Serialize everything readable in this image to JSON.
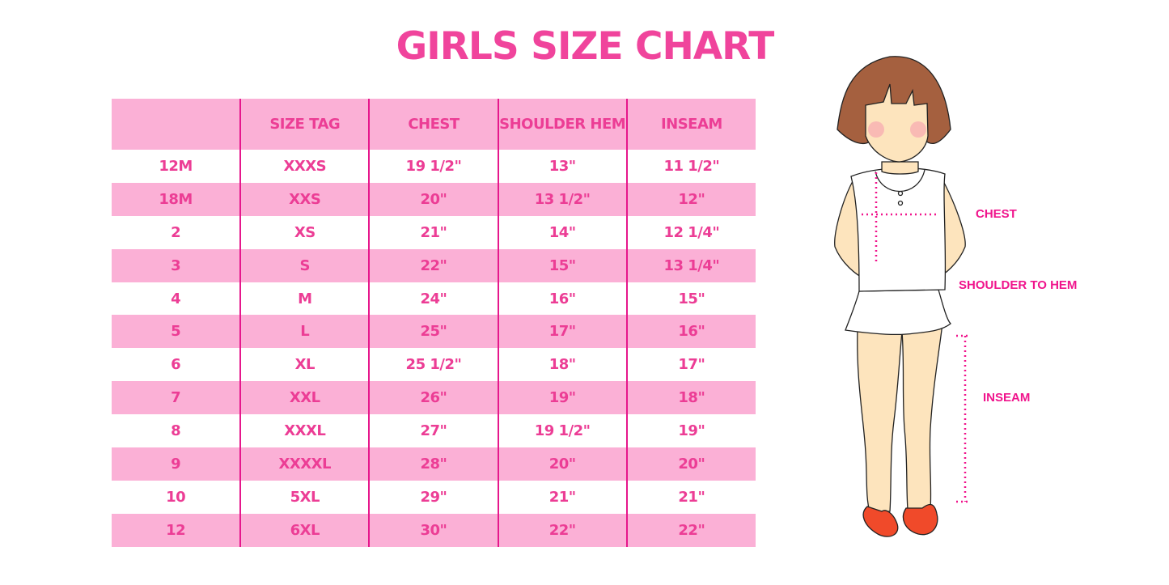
{
  "title": "GIRLS SIZE CHART",
  "table": {
    "headers": [
      "",
      "SIZE TAG",
      "CHEST",
      "SHOULDER HEM",
      "INSEAM"
    ],
    "rows": [
      [
        "12M",
        "XXXS",
        "19 1/2\"",
        "13\"",
        "11 1/2\""
      ],
      [
        "18M",
        "XXS",
        "20\"",
        "13 1/2\"",
        "12\""
      ],
      [
        "2",
        "XS",
        "21\"",
        "14\"",
        "12 1/4\""
      ],
      [
        "3",
        "S",
        "22\"",
        "15\"",
        "13 1/4\""
      ],
      [
        "4",
        "M",
        "24\"",
        "16\"",
        "15\""
      ],
      [
        "5",
        "L",
        "25\"",
        "17\"",
        "16\""
      ],
      [
        "6",
        "XL",
        "25 1/2\"",
        "18\"",
        "17\""
      ],
      [
        "7",
        "XXL",
        "26\"",
        "19\"",
        "18\""
      ],
      [
        "8",
        "XXXL",
        "27\"",
        "19 1/2\"",
        "19\""
      ],
      [
        "9",
        "XXXXL",
        "28\"",
        "20\"",
        "20\""
      ],
      [
        "10",
        "5XL",
        "29\"",
        "21\"",
        "21\""
      ],
      [
        "12",
        "6XL",
        "30\"",
        "22\"",
        "22\""
      ]
    ]
  },
  "figure": {
    "chest_label": "CHEST",
    "shoulder_label": "SHOULDER TO HEM",
    "inseam_label": "INSEAM"
  },
  "colors": {
    "accent": "#f0449c",
    "row_pink": "#fbb0d6",
    "divider": "#e6178c"
  }
}
